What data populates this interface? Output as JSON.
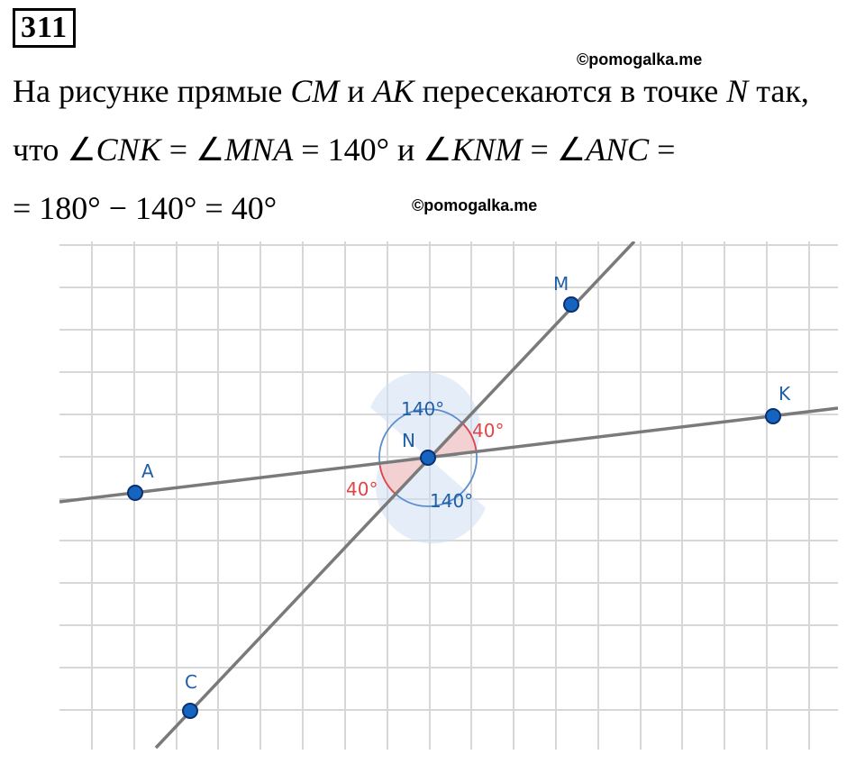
{
  "problem_number": "311",
  "watermark": "©pomogalka.me",
  "text": {
    "line1_a": "На рисунке прямые ",
    "line1_cm": "CM",
    "line1_b": " и ",
    "line1_ak": "AK",
    "line1_c": " пересекаются в точке ",
    "line1_n": "N",
    "line1_d": " так,",
    "line2_a": "что ∠",
    "line2_cnk": "CNK",
    "line2_b": " = ∠",
    "line2_mna": "MNA",
    "line2_c": " = 140°  и  ∠",
    "line2_knm": "KNM",
    "line2_d": " = ∠",
    "line2_anc": "ANC",
    "line2_e": " =",
    "line3": "= 180° − 140° = 40°"
  },
  "figure": {
    "points": {
      "A": "A",
      "K": "K",
      "M": "M",
      "C": "C",
      "N": "N"
    },
    "angles": {
      "big1": "140°",
      "big2": "140°",
      "small1": "40°",
      "small2": "40°"
    },
    "colors": {
      "blue": "#1f5fa8",
      "red": "#e04545",
      "line": "#7a7a7a",
      "grid": "#d7d7d7"
    }
  }
}
